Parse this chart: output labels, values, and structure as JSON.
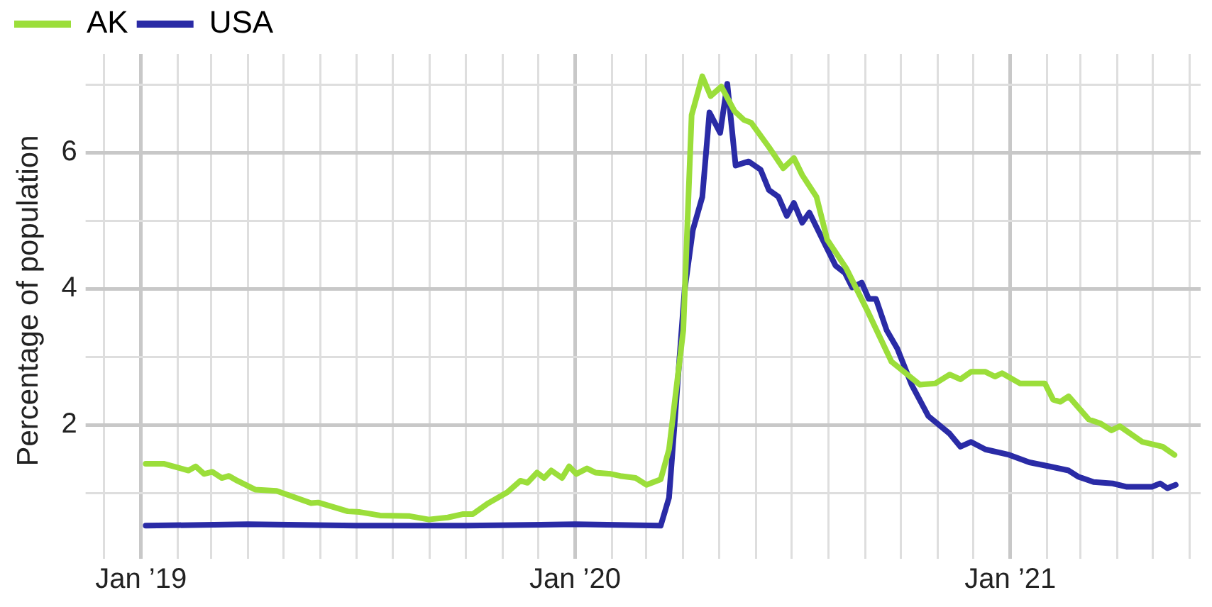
{
  "chart_data": {
    "type": "line",
    "ylabel": "Percentage of population",
    "legend": "top left",
    "grid": true,
    "marker": "none",
    "line_style": "solid",
    "xlim": [
      "2018-11-25",
      "2021-06-10"
    ],
    "xticks": [
      {
        "value": "2018-12",
        "label": null
      },
      {
        "value": "2019-01",
        "label": "Jan ’19"
      },
      {
        "value": "2019-02",
        "label": null
      },
      {
        "value": "2019-03",
        "label": null
      },
      {
        "value": "2019-04",
        "label": null
      },
      {
        "value": "2019-05",
        "label": null
      },
      {
        "value": "2019-06",
        "label": null
      },
      {
        "value": "2019-07",
        "label": null
      },
      {
        "value": "2019-08",
        "label": null
      },
      {
        "value": "2019-09",
        "label": null
      },
      {
        "value": "2019-10",
        "label": null
      },
      {
        "value": "2019-11",
        "label": null
      },
      {
        "value": "2019-12",
        "label": null
      },
      {
        "value": "2020-01",
        "label": "Jan ’20"
      },
      {
        "value": "2020-02",
        "label": null
      },
      {
        "value": "2020-03",
        "label": null
      },
      {
        "value": "2020-04",
        "label": null
      },
      {
        "value": "2020-05",
        "label": null
      },
      {
        "value": "2020-06",
        "label": null
      },
      {
        "value": "2020-07",
        "label": null
      },
      {
        "value": "2020-08",
        "label": null
      },
      {
        "value": "2020-09",
        "label": null
      },
      {
        "value": "2020-10",
        "label": null
      },
      {
        "value": "2020-11",
        "label": null
      },
      {
        "value": "2020-12",
        "label": null
      },
      {
        "value": "2021-01",
        "label": "Jan ’21"
      },
      {
        "value": "2021-02",
        "label": null
      },
      {
        "value": "2021-03",
        "label": null
      },
      {
        "value": "2021-04",
        "label": null
      },
      {
        "value": "2021-05",
        "label": null
      },
      {
        "value": "2021-06",
        "label": null
      }
    ],
    "ylim": [
      0.2,
      7.45
    ],
    "yticks": [
      {
        "value": 1,
        "label": null
      },
      2,
      {
        "value": 3,
        "label": null
      },
      4,
      {
        "value": 5,
        "label": null
      },
      6,
      {
        "value": 7,
        "label": null
      }
    ],
    "series": [
      {
        "name": "AK",
        "color": "#9bde3a",
        "x": [
          "2019-01-05",
          "2019-01-20",
          "2019-02-10",
          "2019-02-16",
          "2019-02-23",
          "2019-03-02",
          "2019-03-10",
          "2019-03-16",
          "2019-03-23",
          "2019-04-07",
          "2019-04-25",
          "2019-05-24",
          "2019-05-30",
          "2019-06-24",
          "2019-07-04",
          "2019-07-21",
          "2019-08-15",
          "2019-08-31",
          "2019-09-16",
          "2019-09-29",
          "2019-10-07",
          "2019-10-20",
          "2019-11-05",
          "2019-11-16",
          "2019-11-22",
          "2019-11-30",
          "2019-12-06",
          "2019-12-12",
          "2019-12-21",
          "2019-12-27",
          "2020-01-02",
          "2020-01-11",
          "2020-01-18",
          "2020-01-31",
          "2020-02-08",
          "2020-02-21",
          "2020-03-01",
          "2020-03-13",
          "2020-03-20",
          "2020-04-01",
          "2020-04-08",
          "2020-04-17",
          "2020-04-24",
          "2020-05-03",
          "2020-05-14",
          "2020-05-22",
          "2020-05-28",
          "2020-06-12",
          "2020-06-24",
          "2020-07-03",
          "2020-07-10",
          "2020-07-22",
          "2020-07-31",
          "2020-08-16",
          "2020-09-03",
          "2020-09-23",
          "2020-10-05",
          "2020-10-17",
          "2020-10-30",
          "2020-11-11",
          "2020-11-20",
          "2020-11-29",
          "2020-12-11",
          "2020-12-19",
          "2020-12-25",
          "2021-01-09",
          "2021-01-30",
          "2021-02-06",
          "2021-02-12",
          "2021-02-19",
          "2021-03-08",
          "2021-03-18",
          "2021-03-27",
          "2021-04-03",
          "2021-04-22",
          "2021-05-09",
          "2021-05-19"
        ],
        "values": [
          1.43,
          1.43,
          1.33,
          1.39,
          1.28,
          1.31,
          1.22,
          1.25,
          1.18,
          1.05,
          1.03,
          0.85,
          0.86,
          0.73,
          0.72,
          0.67,
          0.66,
          0.61,
          0.64,
          0.69,
          0.69,
          0.85,
          1.01,
          1.18,
          1.15,
          1.3,
          1.22,
          1.33,
          1.22,
          1.39,
          1.28,
          1.36,
          1.3,
          1.28,
          1.25,
          1.22,
          1.12,
          1.2,
          1.64,
          3.39,
          6.55,
          7.12,
          6.83,
          6.97,
          6.61,
          6.48,
          6.44,
          6.08,
          5.77,
          5.92,
          5.67,
          5.35,
          4.72,
          4.3,
          3.67,
          2.93,
          2.76,
          2.59,
          2.61,
          2.74,
          2.67,
          2.78,
          2.78,
          2.71,
          2.76,
          2.61,
          2.61,
          2.37,
          2.34,
          2.42,
          2.08,
          2.02,
          1.92,
          1.98,
          1.75,
          1.68,
          1.56
        ]
      },
      {
        "name": "USA",
        "color": "#2a2ba6",
        "x": [
          "2019-01-05",
          "2019-04-01",
          "2019-07-01",
          "2019-10-01",
          "2020-01-01",
          "2020-03-13",
          "2020-03-20",
          "2020-04-02",
          "2020-04-09",
          "2020-04-17",
          "2020-04-23",
          "2020-05-02",
          "2020-05-08",
          "2020-05-15",
          "2020-05-26",
          "2020-06-05",
          "2020-06-12",
          "2020-06-20",
          "2020-06-27",
          "2020-07-03",
          "2020-07-10",
          "2020-07-16",
          "2020-07-25",
          "2020-08-07",
          "2020-08-15",
          "2020-08-21",
          "2020-08-29",
          "2020-09-04",
          "2020-09-10",
          "2020-09-19",
          "2020-09-28",
          "2020-10-10",
          "2020-10-24",
          "2020-11-11",
          "2020-11-20",
          "2020-11-29",
          "2020-12-11",
          "2020-12-31",
          "2021-01-17",
          "2021-02-03",
          "2021-02-19",
          "2021-02-27",
          "2021-03-12",
          "2021-03-28",
          "2021-04-09",
          "2021-04-30",
          "2021-05-07",
          "2021-05-13",
          "2021-05-20"
        ],
        "values": [
          0.52,
          0.54,
          0.52,
          0.52,
          0.54,
          0.52,
          0.93,
          3.96,
          4.86,
          5.35,
          6.59,
          6.29,
          7.01,
          5.81,
          5.87,
          5.75,
          5.45,
          5.35,
          5.07,
          5.26,
          4.97,
          5.12,
          4.8,
          4.34,
          4.23,
          4.02,
          4.09,
          3.85,
          3.85,
          3.39,
          3.12,
          2.59,
          2.13,
          1.87,
          1.68,
          1.75,
          1.64,
          1.56,
          1.45,
          1.39,
          1.33,
          1.24,
          1.16,
          1.14,
          1.09,
          1.09,
          1.14,
          1.07,
          1.12
        ]
      }
    ]
  }
}
